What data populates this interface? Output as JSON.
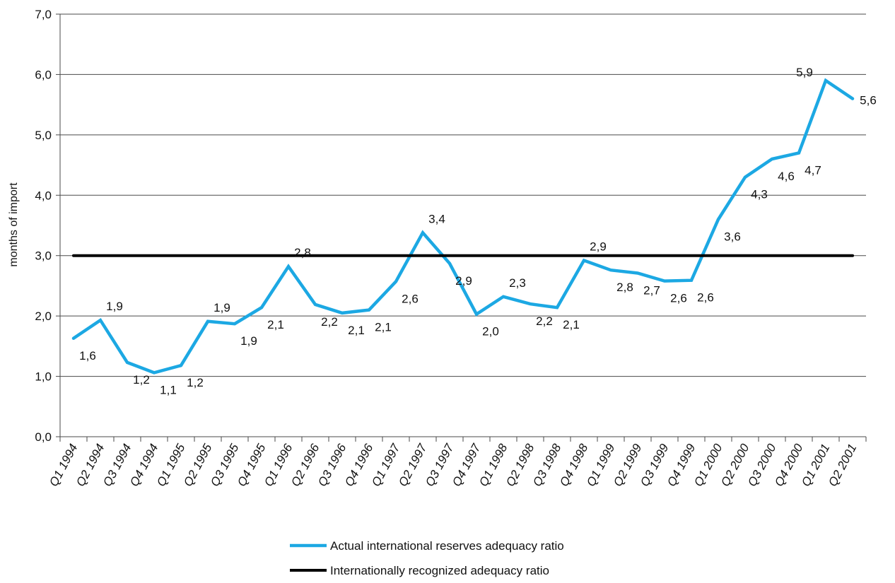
{
  "chart_data": {
    "type": "line",
    "categories": [
      "Q1 1994",
      "Q2 1994",
      "Q3 1994",
      "Q4 1994",
      "Q1 1995",
      "Q2 1995",
      "Q3 1995",
      "Q4 1995",
      "Q1 1996",
      "Q2 1996",
      "Q3 1996",
      "Q4 1996",
      "Q1 1997",
      "Q2 1997",
      "Q3 1997",
      "Q4 1997",
      "Q1 1998",
      "Q2 1998",
      "Q3 1998",
      "Q4 1998",
      "Q1 1999",
      "Q2 1999",
      "Q3 1999",
      "Q4 1999",
      "Q1 2000",
      "Q2 2000",
      "Q3 2000",
      "Q4 2000",
      "Q1 2001",
      "Q2 2001"
    ],
    "series": [
      {
        "name": "Actual international reserves adequacy ratio",
        "color": "#1CA8E3",
        "values": [
          1.63,
          1.93,
          1.23,
          1.06,
          1.18,
          1.91,
          1.87,
          2.14,
          2.82,
          2.19,
          2.05,
          2.1,
          2.57,
          3.38,
          2.87,
          2.03,
          2.32,
          2.2,
          2.14,
          2.92,
          2.76,
          2.71,
          2.58,
          2.59,
          3.6,
          4.3,
          4.6,
          4.7,
          5.9,
          5.6
        ],
        "labels": [
          "1,6",
          "1,9",
          "1,2",
          "1,1",
          "1,2",
          "1,9",
          "1,9",
          "2,1",
          "2,8",
          "2,2",
          "2,1",
          "2,1",
          "2,6",
          "3,4",
          "2,9",
          "2,0",
          "2,3",
          "2,2",
          "2,1",
          "2,9",
          "2,8",
          "2,7",
          "2,6",
          "2,6",
          "3,6",
          "4,3",
          "4,6",
          "4,7",
          "5,9",
          "5,6"
        ]
      },
      {
        "name": "Internationally recognized adequacy ratio",
        "color": "#000000",
        "values": [
          3.0,
          3.0,
          3.0,
          3.0,
          3.0,
          3.0,
          3.0,
          3.0,
          3.0,
          3.0,
          3.0,
          3.0,
          3.0,
          3.0,
          3.0,
          3.0,
          3.0,
          3.0,
          3.0,
          3.0,
          3.0,
          3.0,
          3.0,
          3.0,
          3.0,
          3.0,
          3.0,
          3.0,
          3.0,
          3.0
        ]
      }
    ],
    "y_ticks": [
      "0,0",
      "1,0",
      "2,0",
      "3,0",
      "4,0",
      "5,0",
      "6,0",
      "7,0"
    ],
    "ylabel": "months of import",
    "xlabel": "",
    "title": "",
    "ylim": [
      0,
      7
    ],
    "grid": true,
    "legend_position": "bottom-center"
  }
}
